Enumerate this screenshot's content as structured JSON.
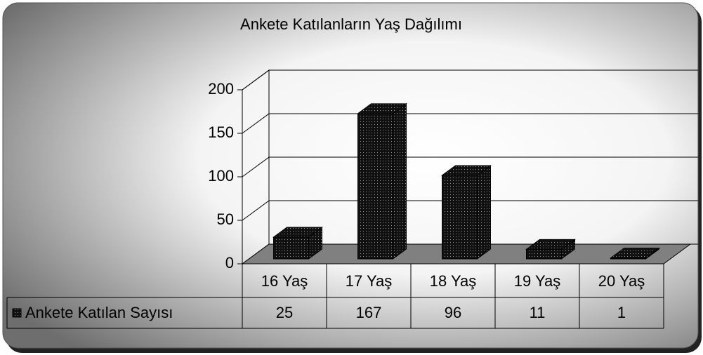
{
  "chart_data": {
    "type": "bar",
    "title": "Ankete Katılanların Yaş Dağılımı",
    "categories": [
      "16 Yaş",
      "17 Yaş",
      "18 Yaş",
      "19 Yaş",
      "20 Yaş"
    ],
    "series": [
      {
        "name": "Ankete Katılan Sayısı",
        "color": "#111111",
        "values": [
          25,
          167,
          96,
          11,
          1
        ]
      }
    ],
    "ylim": [
      0,
      200
    ],
    "yticks": [
      0,
      50,
      100,
      150,
      200
    ],
    "grid": true,
    "data_table": true
  }
}
